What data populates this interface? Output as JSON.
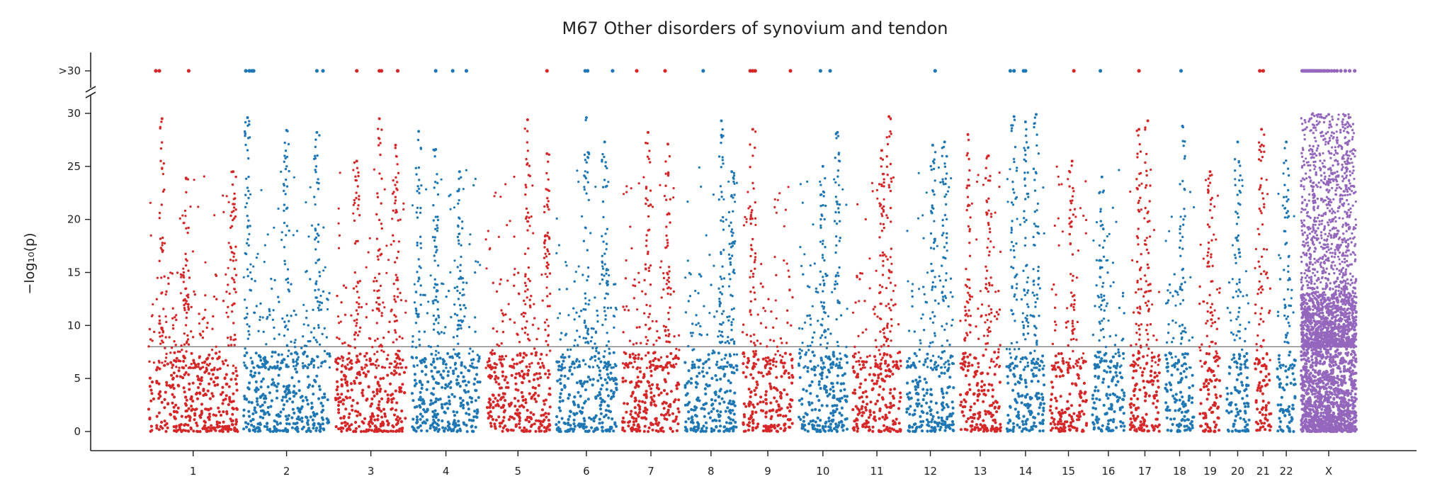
{
  "chart_data": {
    "type": "scatter",
    "title": "M67 Other disorders of synovium and tendon",
    "ylabel": "−log₁₀(p)",
    "xlabel": "",
    "ylim": [
      0,
      30
    ],
    "y_ticks": [
      0,
      5,
      10,
      15,
      20,
      25,
      30
    ],
    "y_cap_label": ">30",
    "significance_line": 8,
    "grid": false,
    "legend": "none",
    "colors": {
      "odd": "#d62728",
      "even": "#1f77b4",
      "X": "#9467bd"
    },
    "chromosomes": [
      {
        "name": "1",
        "length": 249,
        "color": "#d62728",
        "peaks": [
          [
            0.15,
            29.5
          ],
          [
            0.42,
            23.9
          ],
          [
            0.95,
            24.5
          ]
        ],
        "cap_hits": [
          0.08,
          0.12,
          0.45
        ]
      },
      {
        "name": "2",
        "length": 243,
        "color": "#1f77b4",
        "peaks": [
          [
            0.05,
            29.6
          ],
          [
            0.5,
            28.4
          ],
          [
            0.85,
            28.2
          ]
        ],
        "cap_hits": [
          0.03,
          0.07,
          0.1,
          0.12,
          0.85,
          0.92
        ]
      },
      {
        "name": "3",
        "length": 198,
        "color": "#d62728",
        "peaks": [
          [
            0.3,
            25.5
          ],
          [
            0.62,
            29.5
          ],
          [
            0.85,
            27.0
          ]
        ],
        "cap_hits": [
          0.3,
          0.62,
          0.65,
          0.88
        ]
      },
      {
        "name": "4",
        "length": 191,
        "color": "#1f77b4",
        "peaks": [
          [
            0.1,
            28.3
          ],
          [
            0.35,
            26.6
          ],
          [
            0.7,
            24.5
          ]
        ],
        "cap_hits": [
          0.35,
          0.6,
          0.8
        ]
      },
      {
        "name": "5",
        "length": 181,
        "color": "#d62728",
        "peaks": [
          [
            0.65,
            29.4
          ],
          [
            0.95,
            26.2
          ]
        ],
        "cap_hits": [
          0.95
        ]
      },
      {
        "name": "6",
        "length": 171,
        "color": "#1f77b4",
        "peaks": [
          [
            0.5,
            29.6
          ],
          [
            0.8,
            27.3
          ]
        ],
        "cap_hits": [
          0.48,
          0.52,
          0.93
        ]
      },
      {
        "name": "7",
        "length": 159,
        "color": "#d62728",
        "peaks": [
          [
            0.45,
            28.2
          ],
          [
            0.8,
            27.1
          ]
        ],
        "cap_hits": [
          0.25,
          0.75
        ]
      },
      {
        "name": "8",
        "length": 146,
        "color": "#1f77b4",
        "peaks": [
          [
            0.7,
            29.3
          ],
          [
            0.9,
            24.5
          ]
        ],
        "cap_hits": [
          0.35
        ]
      },
      {
        "name": "9",
        "length": 141,
        "color": "#d62728",
        "peaks": [
          [
            0.2,
            28.5
          ]
        ],
        "cap_hits": [
          0.15,
          0.2,
          0.25,
          0.95
        ]
      },
      {
        "name": "10",
        "length": 136,
        "color": "#1f77b4",
        "peaks": [
          [
            0.8,
            28.2
          ],
          [
            0.5,
            25.0
          ]
        ],
        "cap_hits": [
          0.45,
          0.65
        ]
      },
      {
        "name": "11",
        "length": 135,
        "color": "#d62728",
        "peaks": [
          [
            0.75,
            29.7
          ],
          [
            0.6,
            26.5
          ]
        ],
        "cap_hits": []
      },
      {
        "name": "12",
        "length": 133,
        "color": "#1f77b4",
        "peaks": [
          [
            0.55,
            27.0
          ],
          [
            0.8,
            27.3
          ]
        ],
        "cap_hits": [
          0.6
        ]
      },
      {
        "name": "13",
        "length": 115,
        "color": "#d62728",
        "peaks": [
          [
            0.2,
            28.0
          ],
          [
            0.7,
            26.0
          ]
        ],
        "cap_hits": []
      },
      {
        "name": "14",
        "length": 107,
        "color": "#1f77b4",
        "peaks": [
          [
            0.2,
            29.7
          ],
          [
            0.5,
            29.2
          ],
          [
            0.78,
            29.9
          ]
        ],
        "cap_hits": [
          0.1,
          0.2,
          0.45,
          0.5
        ]
      },
      {
        "name": "15",
        "length": 102,
        "color": "#d62728",
        "peaks": [
          [
            0.6,
            25.5
          ]
        ],
        "cap_hits": [
          0.65
        ]
      },
      {
        "name": "16",
        "length": 90,
        "color": "#1f77b4",
        "peaks": [
          [
            0.3,
            24.0
          ]
        ],
        "cap_hits": [
          0.25
        ]
      },
      {
        "name": "17",
        "length": 83,
        "color": "#d62728",
        "peaks": [
          [
            0.3,
            28.5
          ],
          [
            0.6,
            29.3
          ]
        ],
        "cap_hits": [
          0.3
        ]
      },
      {
        "name": "18",
        "length": 80,
        "color": "#1f77b4",
        "peaks": [
          [
            0.6,
            28.8
          ]
        ],
        "cap_hits": [
          0.55
        ]
      },
      {
        "name": "19",
        "length": 59,
        "color": "#d62728",
        "peaks": [
          [
            0.5,
            24.5
          ]
        ],
        "cap_hits": []
      },
      {
        "name": "20",
        "length": 64,
        "color": "#1f77b4",
        "peaks": [
          [
            0.5,
            27.3
          ]
        ],
        "cap_hits": []
      },
      {
        "name": "21",
        "length": 47,
        "color": "#d62728",
        "peaks": [
          [
            0.4,
            28.5
          ]
        ],
        "cap_hits": [
          0.3,
          0.5
        ]
      },
      {
        "name": "22",
        "length": 51,
        "color": "#1f77b4",
        "peaks": [
          [
            0.5,
            27.3
          ]
        ],
        "cap_hits": []
      },
      {
        "name": "X",
        "length": 155,
        "color": "#9467bd",
        "peaks": [
          [
            0.2,
            29.9
          ],
          [
            0.5,
            29.9
          ],
          [
            0.8,
            29.8
          ]
        ],
        "cap_hits": [
          0.02,
          0.05,
          0.08,
          0.11,
          0.14,
          0.17,
          0.2,
          0.23,
          0.26,
          0.29,
          0.33,
          0.36,
          0.4,
          0.43,
          0.47,
          0.5,
          0.55,
          0.6,
          0.65,
          0.72,
          0.8,
          0.88,
          0.97
        ]
      }
    ]
  }
}
